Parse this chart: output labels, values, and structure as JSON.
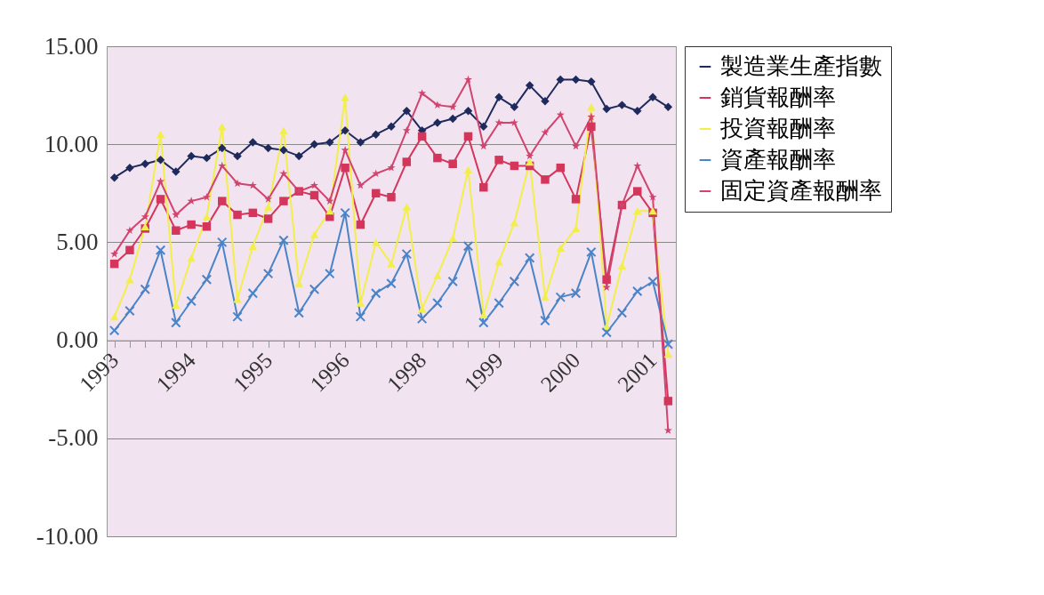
{
  "chart_data": {
    "type": "line",
    "categories": [
      "1993",
      null,
      null,
      null,
      null,
      "1994",
      null,
      null,
      null,
      null,
      "1995",
      null,
      null,
      null,
      null,
      "1996",
      null,
      null,
      null,
      null,
      "1998",
      null,
      null,
      null,
      null,
      "1999",
      null,
      null,
      null,
      null,
      "2000",
      null,
      null,
      null,
      null,
      "2001",
      null
    ],
    "series": [
      {
        "name": "製造業生產指數",
        "color": "#1f2a5c",
        "marker": "diamond",
        "values": [
          8.3,
          8.8,
          9.0,
          9.2,
          8.6,
          9.4,
          9.3,
          9.8,
          9.4,
          10.1,
          9.8,
          9.7,
          9.4,
          10.0,
          10.1,
          10.7,
          10.1,
          10.5,
          10.9,
          11.7,
          10.7,
          11.1,
          11.3,
          11.7,
          10.9,
          12.4,
          11.9,
          13.0,
          12.2,
          13.3,
          13.3,
          13.2,
          11.8,
          12.0,
          11.7,
          12.4,
          11.9
        ]
      },
      {
        "name": "銷貨報酬率",
        "color": "#d4365b",
        "marker": "square",
        "values": [
          3.9,
          4.6,
          5.7,
          7.2,
          5.6,
          5.9,
          5.8,
          7.1,
          6.4,
          6.5,
          6.2,
          7.1,
          7.6,
          7.4,
          6.3,
          8.8,
          5.9,
          7.5,
          7.3,
          9.1,
          10.4,
          9.3,
          9.0,
          10.4,
          7.8,
          9.2,
          8.9,
          8.9,
          8.2,
          8.8,
          7.2,
          10.9,
          3.1,
          6.9,
          7.6,
          6.5,
          -3.1
        ]
      },
      {
        "name": "投資報酬率",
        "color": "#f2ee4a",
        "marker": "triangle",
        "values": [
          1.2,
          3.1,
          5.8,
          10.5,
          1.8,
          4.2,
          6.3,
          10.9,
          2.1,
          4.8,
          6.8,
          10.7,
          2.9,
          5.4,
          6.6,
          12.4,
          1.9,
          5.0,
          3.9,
          6.8,
          1.6,
          3.3,
          5.2,
          8.7,
          1.3,
          4.0,
          6.0,
          9.1,
          2.2,
          4.7,
          5.7,
          11.9,
          0.7,
          3.8,
          6.6,
          6.6,
          -0.7
        ]
      },
      {
        "name": "資產報酬率",
        "color": "#4a84c8",
        "marker": "cross",
        "values": [
          0.5,
          1.5,
          2.6,
          4.6,
          0.9,
          2.0,
          3.1,
          5.0,
          1.2,
          2.4,
          3.4,
          5.1,
          1.4,
          2.6,
          3.4,
          6.5,
          1.2,
          2.4,
          2.9,
          4.4,
          1.1,
          1.9,
          3.0,
          4.8,
          0.9,
          1.9,
          3.0,
          4.2,
          1.0,
          2.2,
          2.4,
          4.5,
          0.4,
          1.4,
          2.5,
          3.0,
          -0.2
        ]
      },
      {
        "name": "固定資產報酬率",
        "color": "#d0446e",
        "marker": "star",
        "values": [
          4.4,
          5.6,
          6.3,
          8.1,
          6.4,
          7.1,
          7.3,
          8.9,
          8.0,
          7.9,
          7.2,
          8.5,
          7.6,
          7.9,
          7.1,
          9.7,
          7.9,
          8.5,
          8.8,
          10.7,
          12.6,
          12.0,
          11.9,
          13.3,
          9.9,
          11.1,
          11.1,
          9.4,
          10.6,
          11.5,
          9.9,
          11.4,
          2.7,
          6.9,
          8.9,
          7.3,
          -4.6
        ]
      }
    ],
    "ylim": [
      -10,
      15
    ],
    "yticks": [
      {
        "value": -10,
        "label": "-10.00"
      },
      {
        "value": -5,
        "label": "-5.00"
      },
      {
        "value": 0,
        "label": "0.00"
      },
      {
        "value": 5,
        "label": "5.00"
      },
      {
        "value": 10,
        "label": "10.00"
      },
      {
        "value": 15,
        "label": "15.00"
      }
    ],
    "grid": "y",
    "legend": "right"
  }
}
